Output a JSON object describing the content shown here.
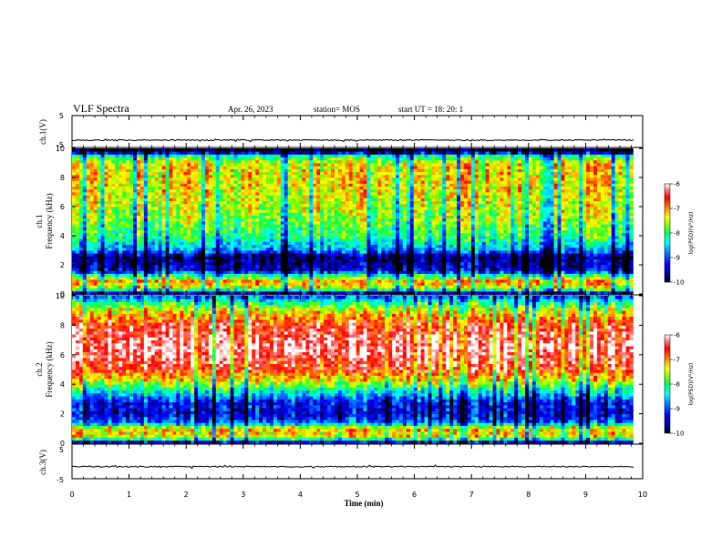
{
  "header": {
    "title": "VLF Spectra",
    "date": "Apr. 26, 2023",
    "station": "station= MOS",
    "start": "start  UT =   18: 20: 1"
  },
  "colorbar": {
    "label": "log(PSD)(V²/Hz)",
    "ticks": [
      "-6",
      "-7",
      "-8",
      "-9",
      "-10"
    ]
  },
  "chart_data": [
    {
      "type": "line",
      "name": "ch1-waveform",
      "ylabel": "ch.1(V)",
      "ylim": [
        -5,
        5
      ],
      "yticks": [
        "5",
        "-5"
      ],
      "baseline": -2.7,
      "xlim": [
        0,
        10
      ]
    },
    {
      "type": "heatmap",
      "name": "ch1-spectrogram",
      "ylabel_line1": "ch.1",
      "ylabel_line2": "Frequency (kHz)",
      "ylim": [
        0,
        10
      ],
      "yticks": [
        "0",
        "2",
        "4",
        "6",
        "8",
        "10"
      ],
      "xlim": [
        0,
        9.83
      ],
      "zlim": [
        -10,
        -6
      ],
      "profile": [
        {
          "f": 0.0,
          "z": -10
        },
        {
          "f": 0.4,
          "z": -7.5
        },
        {
          "f": 0.9,
          "z": -7.0
        },
        {
          "f": 1.3,
          "z": -8.2
        },
        {
          "f": 1.6,
          "z": -9.4
        },
        {
          "f": 2.1,
          "z": -9.6
        },
        {
          "f": 2.6,
          "z": -9.8
        },
        {
          "f": 3.0,
          "z": -8.8
        },
        {
          "f": 4.0,
          "z": -8.0
        },
        {
          "f": 5.5,
          "z": -7.6
        },
        {
          "f": 7.5,
          "z": -7.3
        },
        {
          "f": 9.0,
          "z": -7.3
        },
        {
          "f": 9.5,
          "z": -8.2
        },
        {
          "f": 9.8,
          "z": -10
        },
        {
          "f": 10.0,
          "z": -10
        }
      ]
    },
    {
      "type": "heatmap",
      "name": "ch2-spectrogram",
      "ylabel_line1": "ch.2",
      "ylabel_line2": "Frequency (kHz)",
      "ylim": [
        0,
        10
      ],
      "yticks": [
        "0",
        "2",
        "4",
        "6",
        "8",
        "10"
      ],
      "xlim": [
        0,
        9.83
      ],
      "zlim": [
        -10,
        -6
      ],
      "profile": [
        {
          "f": 0.0,
          "z": -10
        },
        {
          "f": 0.4,
          "z": -7.4
        },
        {
          "f": 1.0,
          "z": -7.1
        },
        {
          "f": 1.4,
          "z": -8.8
        },
        {
          "f": 2.0,
          "z": -9.4
        },
        {
          "f": 2.8,
          "z": -9.2
        },
        {
          "f": 3.5,
          "z": -8.3
        },
        {
          "f": 4.3,
          "z": -7.3
        },
        {
          "f": 5.0,
          "z": -6.6
        },
        {
          "f": 6.5,
          "z": -6.1
        },
        {
          "f": 8.0,
          "z": -6.5
        },
        {
          "f": 8.8,
          "z": -7.1
        },
        {
          "f": 9.4,
          "z": -7.8
        },
        {
          "f": 9.8,
          "z": -8.6
        },
        {
          "f": 10.0,
          "z": -9.0
        }
      ]
    },
    {
      "type": "line",
      "name": "ch3-waveform",
      "ylabel": "ch.3(V)",
      "ylim": [
        -5,
        5
      ],
      "yticks": [
        "5",
        "-5"
      ],
      "baseline": -1.5,
      "xlim": [
        0,
        10
      ]
    }
  ],
  "xaxis": {
    "label": "Time (min)",
    "xlim": [
      0,
      10
    ],
    "ticks": [
      "0",
      "1",
      "2",
      "3",
      "4",
      "5",
      "6",
      "7",
      "8",
      "9",
      "10"
    ]
  }
}
